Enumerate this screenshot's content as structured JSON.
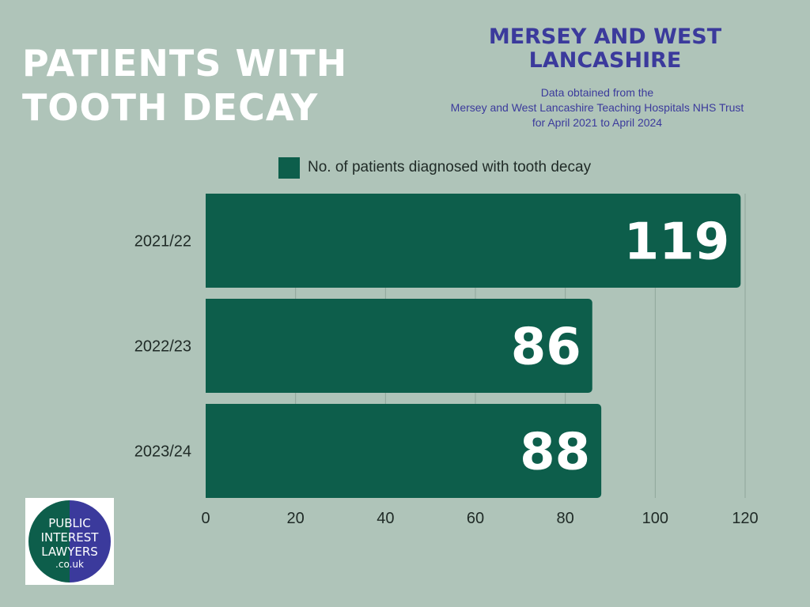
{
  "header": {
    "title_line1": "PATIENTS WITH",
    "title_line2": "TOOTH DECAY",
    "region_line1": "MERSEY AND WEST",
    "region_line2": "LANCASHIRE",
    "source_line1": "Data obtained from the",
    "source_line2": "Mersey and West Lancashire Teaching Hospitals NHS Trust",
    "source_line3": "for April 2021 to April 2024"
  },
  "colors": {
    "background": "#afc4b9",
    "bar": "#0d5e4b",
    "title": "#ffffff",
    "accent": "#3b3a9c"
  },
  "chart_data": {
    "type": "bar",
    "orientation": "horizontal",
    "categories": [
      "2021/22",
      "2022/23",
      "2023/24"
    ],
    "series": [
      {
        "name": "No. of patients diagnosed with tooth decay",
        "values": [
          119,
          86,
          88
        ]
      }
    ],
    "xlim": [
      0,
      120
    ],
    "xticks": [
      0,
      20,
      40,
      60,
      80,
      100,
      120
    ],
    "grid": true,
    "legend": "top-center",
    "data_labels": [
      "119",
      "86",
      "88"
    ]
  },
  "logo": {
    "line1": "PUBLIC",
    "line2": "INTEREST",
    "line3": "LAWYERS",
    "line4": ".co.uk"
  }
}
